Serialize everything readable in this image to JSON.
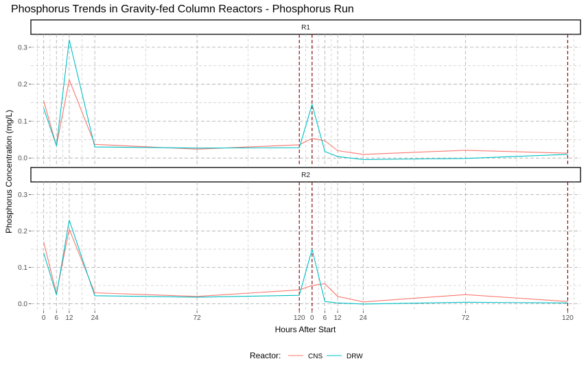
{
  "chart_data": {
    "type": "line",
    "title": "Phosphorus Trends in Gravity-fed Column Reactors - Phosphorus Run",
    "xlabel": "Hours After Start",
    "ylabel": "Phosphorus Concentration (mg/L)",
    "x_tick_labels": [
      "0",
      "6",
      "12",
      "24",
      "72",
      "120",
      "0",
      "6",
      "12",
      "24",
      "72",
      "120"
    ],
    "y_ticks": [
      0.0,
      0.1,
      0.2,
      0.3
    ],
    "y_tick_labels": [
      "0.0",
      "0.1",
      "0.2",
      "0.3"
    ],
    "ylim": [
      -0.02,
      0.335
    ],
    "grid": true,
    "legend": {
      "title": "Reactor:",
      "position": "bottom",
      "entries": [
        "CNS",
        "DRW"
      ]
    },
    "colors": {
      "CNS": "#F8766D",
      "DRW": "#00BFC4",
      "vline": "#8B0000"
    },
    "panels": [
      {
        "label": "R1",
        "series": [
          {
            "name": "CNS",
            "x": [
              "0",
              "6",
              "12",
              "24",
              "72",
              "120",
              "0",
              "6",
              "12",
              "24",
              "72",
              "120"
            ],
            "y": [
              0.155,
              0.033,
              0.212,
              0.037,
              0.024,
              0.036,
              0.053,
              0.047,
              0.02,
              0.01,
              0.021,
              0.013
            ]
          },
          {
            "name": "DRW",
            "x": [
              "0",
              "6",
              "12",
              "24",
              "72",
              "120",
              "0",
              "6",
              "12",
              "24",
              "72",
              "120"
            ],
            "y": [
              0.135,
              0.033,
              0.32,
              0.03,
              0.027,
              0.028,
              0.145,
              0.018,
              0.004,
              -0.004,
              -0.001,
              0.01
            ]
          }
        ]
      },
      {
        "label": "R2",
        "series": [
          {
            "name": "CNS",
            "x": [
              "0",
              "6",
              "12",
              "24",
              "72",
              "120",
              "0",
              "6",
              "12",
              "24",
              "72",
              "120"
            ],
            "y": [
              0.17,
              0.028,
              0.205,
              0.03,
              0.02,
              0.038,
              0.05,
              0.055,
              0.02,
              0.005,
              0.025,
              0.006
            ]
          },
          {
            "name": "DRW",
            "x": [
              "0",
              "6",
              "12",
              "24",
              "72",
              "120",
              "0",
              "6",
              "12",
              "24",
              "72",
              "120"
            ],
            "y": [
              0.14,
              0.024,
              0.23,
              0.022,
              0.018,
              0.023,
              0.15,
              0.006,
              0.002,
              -0.001,
              0.004,
              0.002
            ]
          }
        ]
      }
    ],
    "vlines_at": [
      "120",
      "0",
      "120"
    ]
  }
}
